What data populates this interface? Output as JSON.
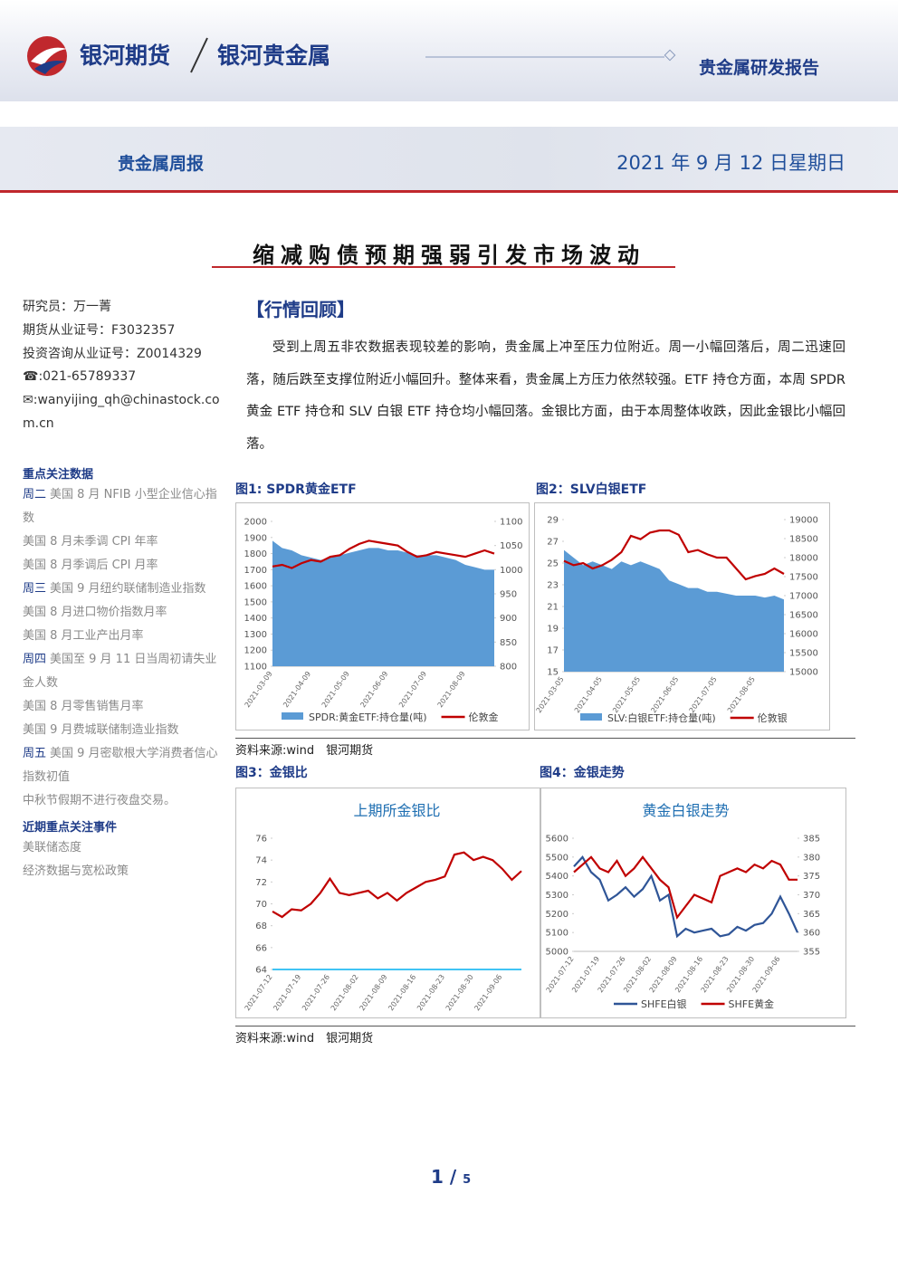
{
  "header": {
    "brand": "银河期货",
    "sub_brand": "银河贵金属",
    "report_type": "贵金属研发报告",
    "column": "贵金属周报",
    "date": "2021 年 9 月 12 日星期日"
  },
  "title": "缩减购债预期强弱引发市场波动",
  "sidebar": {
    "researcher": [
      "研究员：万一菁",
      "期货从业证号：F3032357",
      "投资咨询从业证号：Z0014329",
      "☎:021-65789337",
      "✉:wanyijing_qh@chinastock.com.cn"
    ],
    "focus_title": "重点关注数据",
    "focus": [
      {
        "day": "周二",
        "text": "美国 8 月 NFIB 小型企业信心指数"
      },
      {
        "text": "美国 8 月未季调 CPI 年率"
      },
      {
        "text": "美国 8 月季调后 CPI 月率"
      },
      {
        "day": "周三",
        "text": "美国 9 月纽约联储制造业指数"
      },
      {
        "text": "美国 8 月进口物价指数月率"
      },
      {
        "text": "美国 8 月工业产出月率"
      },
      {
        "day": "周四",
        "text": "美国至 9 月 11 日当周初请失业金人数"
      },
      {
        "text": "美国 8 月零售销售月率"
      },
      {
        "text": "美国 9 月费城联储制造业指数"
      },
      {
        "day": "周五",
        "text": "美国 9 月密歇根大学消费者信心指数初值"
      },
      {
        "text": "中秋节假期不进行夜盘交易。"
      }
    ],
    "events_title": "近期重点关注事件",
    "events": [
      "美联储态度",
      "经济数据与宽松政策"
    ]
  },
  "section_title": "【行情回顾】",
  "paragraph": "受到上周五非农数据表现较差的影响，贵金属上冲至压力位附近。周一小幅回落后，周二迅速回落，随后跌至支撑位附近小幅回升。整体来看，贵金属上方压力依然较强。ETF 持仓方面，本周 SPDR 黄金 ETF 持仓和 SLV 白银 ETF 持仓均小幅回落。金银比方面，由于本周整体收跌，因此金银比小幅回落。",
  "captions": [
    "图1: SPDR黄金ETF",
    "图2：SLV白银ETF",
    "图3：金银比",
    "图4：金银走势"
  ],
  "sources": [
    "资料来源:wind　银河期货",
    "资料来源:wind　银河期货"
  ],
  "page": {
    "current": 1,
    "total": 5
  },
  "chart_data": [
    {
      "type": "combo",
      "categories": [
        "2021-03-09",
        null,
        null,
        null,
        "2021-04-09",
        null,
        null,
        null,
        "2021-05-09",
        null,
        null,
        null,
        "2021-06-09",
        null,
        null,
        null,
        "2021-07-09",
        null,
        null,
        null,
        "2021-08-09",
        null,
        null,
        null
      ],
      "series": [
        {
          "name": "SPDR:黄金ETF:持仓量(吨)",
          "kind": "area",
          "axis": "y2",
          "color": "#5b9bd5",
          "values": [
            1060,
            1045,
            1040,
            1030,
            1025,
            1020,
            1025,
            1030,
            1035,
            1040,
            1045,
            1045,
            1040,
            1040,
            1035,
            1030,
            1030,
            1030,
            1025,
            1020,
            1010,
            1005,
            1000,
            1000
          ]
        },
        {
          "name": "伦敦金",
          "kind": "line",
          "axis": "y",
          "color": "#c00000",
          "values": [
            1720,
            1730,
            1710,
            1740,
            1760,
            1750,
            1780,
            1790,
            1830,
            1860,
            1880,
            1870,
            1860,
            1850,
            1810,
            1780,
            1790,
            1810,
            1800,
            1790,
            1780,
            1800,
            1820,
            1800
          ]
        }
      ],
      "ylim": [
        1100,
        2000
      ],
      "yticks": [
        1100,
        1200,
        1300,
        1400,
        1500,
        1600,
        1700,
        1800,
        1900,
        2000
      ],
      "y2lim": [
        800,
        1100
      ],
      "y2ticks": [
        800,
        850,
        900,
        950,
        1000,
        1050,
        1100
      ]
    },
    {
      "type": "combo",
      "categories": [
        "2021-03-05",
        null,
        null,
        null,
        "2021-04-05",
        null,
        null,
        null,
        "2021-05-05",
        null,
        null,
        null,
        "2021-06-05",
        null,
        null,
        null,
        "2021-07-05",
        null,
        null,
        null,
        "2021-08-05",
        null,
        null,
        null
      ],
      "series": [
        {
          "name": "SLV:白银ETF:持仓量(吨)",
          "kind": "area",
          "axis": "y2",
          "color": "#5b9bd5",
          "values": [
            18200,
            18000,
            17800,
            17900,
            17800,
            17700,
            17900,
            17800,
            17900,
            17800,
            17700,
            17400,
            17300,
            17200,
            17200,
            17100,
            17100,
            17050,
            17000,
            17000,
            17000,
            16950,
            17000,
            16900
          ]
        },
        {
          "name": "伦敦银",
          "kind": "line",
          "axis": "y",
          "color": "#c00000",
          "values": [
            25.2,
            24.8,
            25.0,
            24.5,
            24.8,
            25.3,
            26.0,
            27.5,
            27.2,
            27.8,
            28.0,
            28.0,
            27.6,
            26.0,
            26.2,
            25.8,
            25.5,
            25.5,
            24.5,
            23.5,
            23.8,
            24.0,
            24.5,
            24.0
          ]
        }
      ],
      "ylim": [
        15,
        29
      ],
      "yticks": [
        15,
        17,
        19,
        21,
        23,
        25,
        27,
        29
      ],
      "y2lim": [
        15000,
        19000
      ],
      "y2ticks": [
        15000,
        15500,
        16000,
        16500,
        17000,
        17500,
        18000,
        18500,
        19000
      ]
    },
    {
      "type": "line",
      "title": "上期所金银比",
      "categories": [
        "2021-07-12",
        null,
        null,
        "2021-07-19",
        null,
        null,
        "2021-07-26",
        null,
        null,
        "2021-08-02",
        null,
        null,
        "2021-08-09",
        null,
        null,
        "2021-08-16",
        null,
        null,
        "2021-08-23",
        null,
        null,
        "2021-08-30",
        null,
        null,
        "2021-09-06",
        null,
        null
      ],
      "series": [
        {
          "name": "金银比",
          "kind": "line",
          "axis": "y",
          "color": "#c00000",
          "values": [
            69.3,
            68.8,
            69.5,
            69.4,
            70.0,
            71.0,
            72.3,
            71.0,
            70.8,
            71.0,
            71.2,
            70.5,
            71.0,
            70.3,
            71.0,
            71.5,
            72.0,
            72.2,
            72.5,
            74.5,
            74.7,
            74.0,
            74.3,
            74.0,
            73.2,
            72.2,
            73.0
          ]
        }
      ],
      "legend": false,
      "ylim": [
        64,
        76
      ],
      "yticks": [
        64,
        66,
        68,
        70,
        72,
        74,
        76
      ]
    },
    {
      "type": "line",
      "title": "黄金白银走势",
      "categories": [
        "2021-07-12",
        null,
        null,
        "2021-07-19",
        null,
        null,
        "2021-07-26",
        null,
        null,
        "2021-08-02",
        null,
        null,
        "2021-08-09",
        null,
        null,
        "2021-08-16",
        null,
        null,
        "2021-08-23",
        null,
        null,
        "2021-08-30",
        null,
        null,
        "2021-09-06",
        null,
        null
      ],
      "series": [
        {
          "name": "SHFE白银",
          "kind": "line",
          "axis": "y",
          "color": "#2f5597",
          "values": [
            5450,
            5500,
            5420,
            5380,
            5270,
            5300,
            5340,
            5290,
            5330,
            5400,
            5270,
            5300,
            5080,
            5120,
            5100,
            5110,
            5120,
            5080,
            5090,
            5130,
            5110,
            5140,
            5150,
            5200,
            5290,
            5200,
            5100
          ]
        },
        {
          "name": "SHFE黄金",
          "kind": "line",
          "axis": "y2",
          "color": "#c00000",
          "values": [
            376,
            378,
            380,
            377,
            376,
            379,
            375,
            377,
            380,
            377,
            374,
            372,
            364,
            367,
            370,
            369,
            368,
            375,
            376,
            377,
            376,
            378,
            377,
            379,
            378,
            374,
            374
          ]
        }
      ],
      "legend": true,
      "ylim": [
        5000,
        5600
      ],
      "yticks": [
        5000,
        5100,
        5200,
        5300,
        5400,
        5500,
        5600
      ],
      "y2lim": [
        355,
        385
      ],
      "y2ticks": [
        355,
        360,
        365,
        370,
        375,
        380,
        385
      ]
    }
  ]
}
